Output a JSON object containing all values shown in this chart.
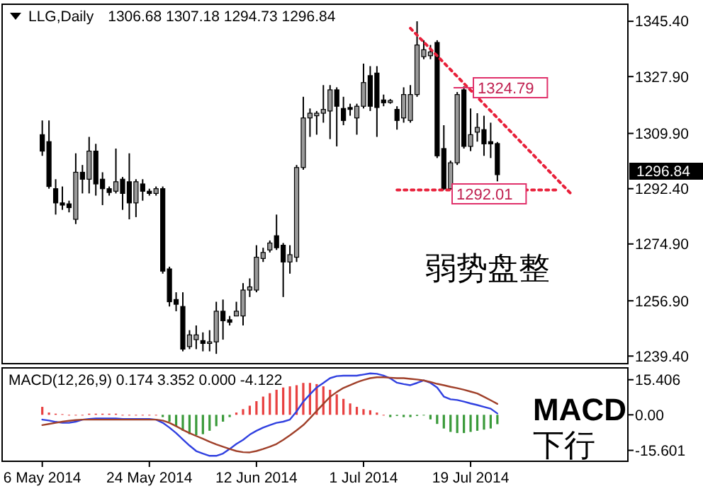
{
  "chart_data": [
    {
      "type": "candlestick",
      "title": "LLG,Daily",
      "subtitle": "1306.68 1307.18 1294.73 1296.84",
      "categories": [
        null,
        null,
        null,
        null,
        null,
        null,
        null,
        null,
        null,
        null,
        null,
        null,
        null,
        null,
        null,
        null,
        null,
        null,
        null,
        null,
        null,
        null,
        null,
        null,
        null,
        null,
        null,
        null,
        null,
        null,
        null,
        null,
        null,
        null,
        null,
        null,
        null,
        null,
        null,
        null,
        null,
        null,
        null,
        null,
        null,
        null,
        null,
        null,
        null,
        null,
        null,
        null,
        null,
        null,
        null,
        null,
        null,
        null,
        null,
        null,
        null,
        null,
        null,
        null,
        null,
        null,
        null,
        null,
        null,
        null,
        null,
        null,
        null,
        null,
        null,
        null,
        null,
        null,
        null,
        null,
        null,
        null,
        null,
        null,
        null,
        null,
        null,
        null
      ],
      "ohlc": [
        [
          1309.5,
          1314,
          1302.8,
          1304.3
        ],
        [
          1307.3,
          1314,
          1292.4,
          1293.1
        ],
        [
          1292.4,
          1295.4,
          1284.2,
          1287.9
        ],
        [
          1287.9,
          1293.1,
          1285.7,
          1287.2
        ],
        [
          1287.6,
          1288.6,
          1284.9,
          1286.4
        ],
        [
          1282.7,
          1303.6,
          1281.2,
          1297.6
        ],
        [
          1297.6,
          1299.9,
          1290.9,
          1295.4
        ],
        [
          1295.4,
          1308.8,
          1290.9,
          1304.3
        ],
        [
          1304.3,
          1306.6,
          1290.2,
          1293.9
        ],
        [
          1295.4,
          1297.6,
          1287.2,
          1292.4
        ],
        [
          1292.4,
          1293.1,
          1290.2,
          1291.2
        ],
        [
          1291.6,
          1305.1,
          1290.9,
          1294.6
        ],
        [
          1295.4,
          1296.1,
          1285.7,
          1290.9
        ],
        [
          1294.6,
          1303.6,
          1282.7,
          1287.9
        ],
        [
          1287.9,
          1295.4,
          1283.4,
          1294.6
        ],
        [
          1293.9,
          1295.4,
          1288.6,
          1291.6
        ],
        [
          1291.6,
          1292.4,
          1290.2,
          1290.9
        ],
        [
          1290.9,
          1293.1,
          1290.2,
          1292.4
        ],
        [
          1292.4,
          1293.1,
          1265.5,
          1266.3
        ],
        [
          1267,
          1267.7,
          1255.1,
          1256.6
        ],
        [
          1257.3,
          1259.6,
          1253.6,
          1255.8
        ],
        [
          1255.1,
          1259.6,
          1240.9,
          1241.6
        ],
        [
          1242.4,
          1247.6,
          1241.6,
          1246.1
        ],
        [
          1244.6,
          1249.1,
          1241.6,
          1246.1
        ],
        [
          1244.3,
          1246.9,
          1240.9,
          1243.4
        ],
        [
          1243.4,
          1247.6,
          1240.9,
          1243.9
        ],
        [
          1243.9,
          1256.6,
          1240.1,
          1253.6
        ],
        [
          1253.6,
          1257.3,
          1244.6,
          1250.6
        ],
        [
          1250.9,
          1252.1,
          1249.1,
          1250.1
        ],
        [
          1252.1,
          1256.6,
          1252.1,
          1253.6
        ],
        [
          1252.1,
          1262.5,
          1249.1,
          1260.3
        ],
        [
          1260.3,
          1264,
          1258.1,
          1261.3
        ],
        [
          1260.3,
          1274.5,
          1259.6,
          1270.7
        ],
        [
          1270.3,
          1273.7,
          1269.2,
          1272.2
        ],
        [
          1273,
          1276,
          1272.2,
          1275.2
        ],
        [
          1277.5,
          1284.2,
          1273,
          1273.7
        ],
        [
          1274.5,
          1275.2,
          1258.1,
          1269.2
        ],
        [
          1269.2,
          1274.5,
          1265.5,
          1271.5
        ],
        [
          1270.7,
          1299.9,
          1269.2,
          1299.1
        ],
        [
          1299.1,
          1321.5,
          1298.4,
          1314.8
        ],
        [
          1314.8,
          1317.8,
          1308.8,
          1316.3
        ],
        [
          1315.5,
          1317,
          1309.5,
          1316.3
        ],
        [
          1316.3,
          1325.2,
          1313.3,
          1317.5
        ],
        [
          1317,
          1325.2,
          1308.1,
          1323.7
        ],
        [
          1323.7,
          1324.5,
          1305.8,
          1318.5
        ],
        [
          1317.8,
          1321.5,
          1312.5,
          1314
        ],
        [
          1318.1,
          1319.3,
          1315.5,
          1317.5
        ],
        [
          1314.8,
          1319.3,
          1309.5,
          1318.5
        ],
        [
          1318.5,
          1332,
          1317.8,
          1326
        ],
        [
          1328.2,
          1331.2,
          1317,
          1318.5
        ],
        [
          1329,
          1331.2,
          1308.8,
          1318.1
        ],
        [
          1320.5,
          1322.2,
          1318.5,
          1319.6
        ],
        [
          1319.7,
          1320.8,
          1319.3,
          1320.3
        ],
        [
          1317.5,
          1318.5,
          1311.1,
          1314
        ],
        [
          1314.8,
          1324.5,
          1313.3,
          1322.2
        ],
        [
          1314,
          1325.2,
          1313.3,
          1322.2
        ],
        [
          1322.2,
          1345.4,
          1321.5,
          1337.9
        ],
        [
          1334.2,
          1339.4,
          1333.4,
          1336.4
        ],
        [
          1334.5,
          1337.9,
          1333.4,
          1335.7
        ],
        [
          1338.7,
          1339.4,
          1302.1,
          1302.8
        ],
        [
          1305.1,
          1312.5,
          1292.01,
          1292.4
        ],
        [
          1292.4,
          1301.3,
          1292.1,
          1300.6
        ],
        [
          1300.6,
          1323,
          1299.9,
          1322.2
        ],
        [
          1323.7,
          1324.79,
          1305.1,
          1305.8
        ],
        [
          1305.8,
          1317.8,
          1304.3,
          1309.5
        ],
        [
          1310.3,
          1316.3,
          1307.3,
          1311.8
        ],
        [
          1311.1,
          1315.5,
          1302.8,
          1306.6
        ],
        [
          1307.3,
          1313.3,
          1302.1,
          1306.6
        ],
        [
          1306.68,
          1307.18,
          1294.73,
          1296.84
        ],
        null,
        null,
        null,
        null,
        null,
        null,
        null,
        null,
        null,
        null,
        null,
        null,
        null,
        null,
        null,
        null,
        null,
        null,
        null
      ],
      "series": [
        {
          "type": "line",
          "color": "#e8203a",
          "line_style": "dotted",
          "values": [
            null,
            null,
            null,
            null,
            null,
            null,
            null,
            null,
            null,
            null,
            null,
            null,
            null,
            null,
            null,
            null,
            null,
            null,
            null,
            null,
            null,
            null,
            null,
            null,
            null,
            null,
            null,
            null,
            null,
            null,
            null,
            null,
            null,
            null,
            null,
            null,
            null,
            null,
            null,
            null,
            null,
            null,
            null,
            null,
            null,
            null,
            null,
            null,
            null,
            null,
            null,
            null,
            null,
            null,
            null,
            1343.2,
            null,
            null,
            null,
            null,
            null,
            null,
            null,
            null,
            null,
            null,
            null,
            null,
            null,
            null,
            null,
            null,
            null,
            null,
            null,
            null,
            null,
            null,
            null,
            1290.8,
            null,
            null,
            null,
            null,
            null,
            null,
            null,
            null
          ]
        },
        {
          "type": "line",
          "color": "#e8203a",
          "line_style": "dotted",
          "values": [
            null,
            null,
            null,
            null,
            null,
            null,
            null,
            null,
            null,
            null,
            null,
            null,
            null,
            null,
            null,
            null,
            null,
            null,
            null,
            null,
            null,
            null,
            null,
            null,
            null,
            null,
            null,
            null,
            null,
            null,
            null,
            null,
            null,
            null,
            null,
            null,
            null,
            null,
            null,
            null,
            null,
            null,
            null,
            null,
            null,
            null,
            null,
            null,
            null,
            null,
            null,
            null,
            null,
            1292,
            null,
            null,
            null,
            null,
            null,
            null,
            null,
            null,
            null,
            null,
            null,
            null,
            null,
            null,
            null,
            null,
            null,
            null,
            null,
            null,
            null,
            null,
            null,
            1292,
            null,
            null,
            null,
            null,
            null,
            null,
            null,
            null,
            null,
            null
          ]
        }
      ],
      "ylim": [
        1237,
        1350.8
      ],
      "yticks": [
        {
          "value": 1345.4,
          "label": "1345.40"
        },
        {
          "value": 1327.9,
          "label": "1327.90"
        },
        {
          "value": 1309.9,
          "label": "1309.90"
        },
        {
          "value": 1292.4,
          "label": "1292.40"
        },
        {
          "value": 1274.9,
          "label": "1274.90"
        },
        {
          "value": 1256.9,
          "label": "1256.90"
        },
        {
          "value": 1239.4,
          "label": "1239.40"
        }
      ],
      "tick_labels": "y",
      "annotations": [
        "1324.79",
        "1292.01",
        "1296.84",
        "弱势盘整"
      ]
    },
    {
      "type": "bar",
      "title": "MACD(12,26,9) 0.174 3.352 0.000 -4.122",
      "categories": [
        "6 May 2014",
        null,
        null,
        null,
        null,
        null,
        null,
        null,
        null,
        null,
        null,
        null,
        null,
        null,
        null,
        null,
        "24 May 2014",
        null,
        null,
        null,
        null,
        null,
        null,
        null,
        null,
        null,
        null,
        null,
        null,
        null,
        null,
        null,
        "12 Jun 2014",
        null,
        null,
        null,
        null,
        null,
        null,
        null,
        null,
        null,
        null,
        null,
        null,
        null,
        null,
        null,
        "1 Jul 2014",
        null,
        null,
        null,
        null,
        null,
        null,
        null,
        null,
        null,
        null,
        null,
        null,
        null,
        null,
        null,
        "19 Jul 2014",
        null,
        null,
        null,
        null,
        null,
        null,
        null,
        null,
        null,
        null,
        null,
        null,
        null,
        null,
        null,
        null,
        null,
        null,
        null,
        null,
        null,
        null,
        null
      ],
      "series": [
        {
          "type": "bar",
          "values": [
            3.5,
            1,
            0.5,
            0.3,
            0,
            0,
            0,
            0.5,
            0.5,
            0.5,
            0.5,
            0.5,
            0,
            0,
            0,
            0,
            0,
            0,
            -1,
            -3,
            -5,
            -7,
            -8.5,
            -9,
            -8.5,
            -7,
            -5,
            -3,
            -1,
            1,
            2.5,
            4,
            6,
            8,
            9.5,
            11,
            12,
            12.5,
            13,
            14,
            14,
            13.5,
            12.5,
            11,
            9,
            7,
            5,
            3.5,
            2.5,
            2,
            1,
            0,
            -1,
            -0.5,
            -1,
            -1,
            -0.5,
            -0.3,
            -2,
            -4,
            -6,
            -7.5,
            -8,
            -8,
            -7.5,
            -7,
            -6.5,
            -6,
            -4.1,
            null,
            null,
            null,
            null,
            null,
            null,
            null,
            null,
            null,
            null,
            null,
            null,
            null,
            null,
            null,
            null,
            null,
            null,
            null
          ],
          "colors": [
            "#e84040",
            "#e84040",
            "#e84040",
            "#e84040",
            "#e84040",
            "#e84040",
            "#e84040",
            "#e84040",
            "#e84040",
            "#e84040",
            "#e84040",
            "#e84040",
            "#e84040",
            "#e84040",
            "#e84040",
            "#e84040",
            "#e84040",
            "#e84040",
            "#3a9a3a",
            "#3a9a3a",
            "#3a9a3a",
            "#3a9a3a",
            "#3a9a3a",
            "#3a9a3a",
            "#3a9a3a",
            "#3a9a3a",
            "#3a9a3a",
            "#3a9a3a",
            "#3a9a3a",
            "#e84040",
            "#e84040",
            "#e84040",
            "#e84040",
            "#e84040",
            "#e84040",
            "#e84040",
            "#e84040",
            "#e84040",
            "#e84040",
            "#e84040",
            "#e84040",
            "#e84040",
            "#e84040",
            "#e84040",
            "#e84040",
            "#e84040",
            "#e84040",
            "#e84040",
            "#e84040",
            "#e84040",
            "#e84040",
            "#e84040",
            "#3a9a3a",
            "#3a9a3a",
            "#3a9a3a",
            "#3a9a3a",
            "#3a9a3a",
            "#3a9a3a",
            "#3a9a3a",
            "#3a9a3a",
            "#3a9a3a",
            "#3a9a3a",
            "#3a9a3a",
            "#3a9a3a",
            "#3a9a3a",
            "#3a9a3a",
            "#3a9a3a",
            "#3a9a3a",
            "#3a9a3a",
            null,
            null,
            null,
            null,
            null,
            null,
            null,
            null,
            null,
            null,
            null,
            null,
            null,
            null,
            null,
            null,
            null,
            null,
            null
          ]
        },
        {
          "type": "line",
          "color": "#3040e0",
          "values": [
            -2.1,
            -2.5,
            -3.1,
            -3.5,
            -3.5,
            -3,
            -2.1,
            -1.8,
            -1.6,
            -1.6,
            -1.6,
            -1.6,
            -1.8,
            -1.8,
            -1.8,
            -1.8,
            -1.8,
            -2.1,
            -3.5,
            -5.6,
            -8,
            -10.8,
            -13.5,
            -15.9,
            -17,
            -18,
            -18,
            -17,
            -15,
            -12.8,
            -11,
            -8.7,
            -7,
            -5.6,
            -4.5,
            -3.5,
            -3,
            -2.1,
            1.5,
            5.8,
            9,
            12,
            14,
            16.1,
            17,
            17.2,
            17.2,
            17.2,
            17.7,
            18.2,
            18,
            17.2,
            16,
            14.1,
            13.5,
            13,
            14,
            15.1,
            14,
            12,
            8,
            6.8,
            6.5,
            5.8,
            5,
            4.3,
            3.5,
            2.7,
            0.6,
            null,
            null,
            null,
            null,
            null,
            null,
            null,
            null,
            null,
            null,
            null,
            null,
            null,
            null,
            null,
            null,
            null,
            null,
            null
          ]
        },
        {
          "type": "line",
          "color": "#a0402a",
          "values": [
            -4.5,
            -4,
            -3.5,
            -3,
            -2.6,
            -2.3,
            -2.1,
            -2.1,
            -2.1,
            -2.1,
            -2.1,
            -2.1,
            -2.1,
            -2.1,
            -2.1,
            -2.1,
            -2.1,
            -2.1,
            -2.5,
            -3.5,
            -5,
            -6.6,
            -8,
            -9.3,
            -10.5,
            -11.8,
            -13,
            -14,
            -15,
            -15.9,
            -16.4,
            -16.5,
            -15.9,
            -15,
            -14,
            -12.8,
            -11,
            -9,
            -6.8,
            -4.5,
            -1.5,
            1.7,
            4.8,
            7.9,
            10,
            11.8,
            13,
            14.3,
            15.3,
            16.1,
            16.5,
            16.5,
            16.3,
            16.1,
            16.1,
            15.8,
            15.5,
            15.1,
            14.4,
            13.6,
            13,
            12.3,
            11.7,
            11,
            10.2,
            9.4,
            7.9,
            6.4,
            4.8,
            null,
            null,
            null,
            null,
            null,
            null,
            null,
            null,
            null,
            null,
            null,
            null,
            null,
            null,
            null,
            null,
            null,
            null,
            null
          ]
        }
      ],
      "ylim": [
        -20.4,
        20.6
      ],
      "yticks": [
        {
          "value": 15.406,
          "label": "15.406"
        },
        {
          "value": 0,
          "label": "0.00"
        },
        {
          "value": -15.601,
          "label": "-15.601"
        }
      ],
      "annotations": [
        "MACD",
        "下行"
      ]
    }
  ]
}
